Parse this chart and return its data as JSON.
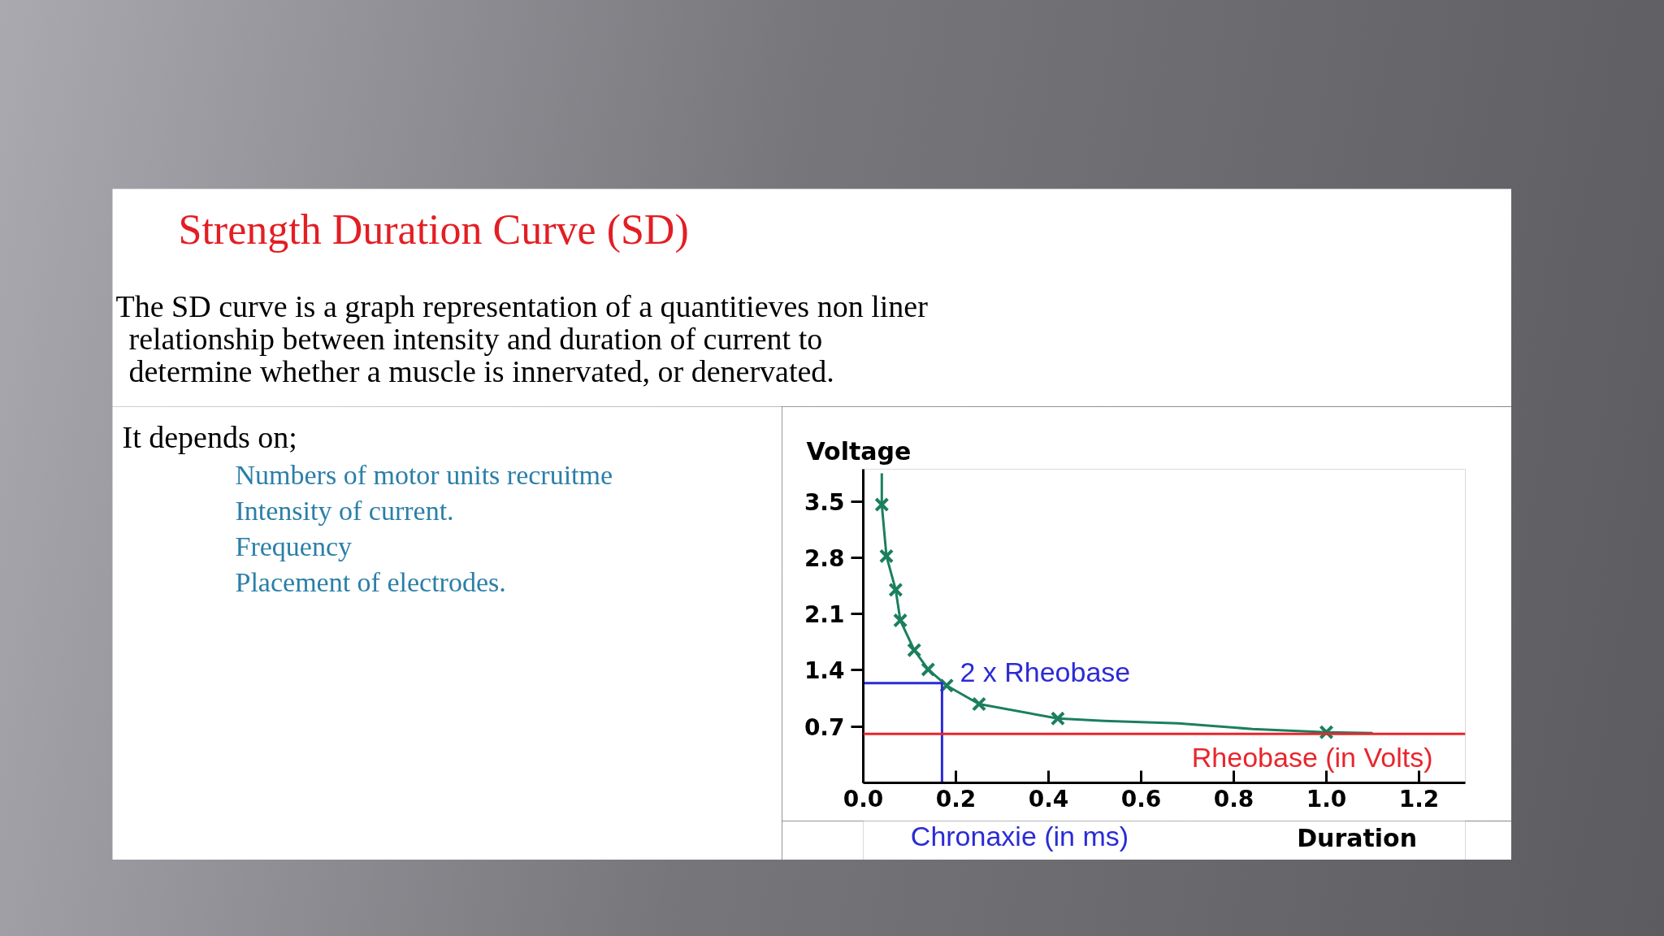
{
  "chart_data": {
    "type": "line",
    "title": "Strength Duration Curve (SD)",
    "subtitle": "The SD curve is a graph representation of a quantitieves non liner relationship between intensity and duration of current to determine whether a muscle is innervated, or denervated.",
    "xlabel": "Duration",
    "ylabel": "Voltage",
    "xlim": [
      0,
      1.3
    ],
    "ylim": [
      0,
      3.9
    ],
    "xticks": [
      {
        "value": 0,
        "label": "0.0"
      },
      0.2,
      0.4,
      0.6,
      0.8,
      {
        "value": 1,
        "label": "1.0"
      },
      1.2
    ],
    "yticks": [
      0.7,
      1.4,
      2.1,
      2.8,
      3.5
    ],
    "series": [
      {
        "color": "#1b7f5e",
        "x": [
          0.04,
          0.04,
          0.05,
          0.07,
          0.08,
          0.11,
          0.14,
          0.18,
          0.25,
          0.42,
          0.52,
          0.68,
          0.84,
          1.0,
          1.1
        ],
        "values": [
          3.85,
          3.46,
          2.82,
          2.4,
          2.02,
          1.65,
          1.41,
          1.21,
          0.98,
          0.8,
          0.77,
          0.74,
          0.67,
          0.63,
          0.62
        ]
      },
      {
        "type": "scatter",
        "marker": "cross",
        "color": "#1b7f5e",
        "x": [
          0.04,
          0.05,
          0.07,
          0.08,
          0.11,
          0.14,
          0.18,
          0.25,
          0.42,
          1.0
        ],
        "values": [
          3.46,
          2.82,
          2.4,
          2.02,
          1.65,
          1.41,
          1.21,
          0.98,
          0.8,
          0.63
        ]
      },
      {
        "color": "#2b2bd6",
        "x": [
          0,
          0.17,
          0.17
        ],
        "values": [
          1.24,
          1.24,
          0
        ]
      }
    ],
    "ref_lines": [
      {
        "axis": "y",
        "value": 0.61,
        "label": "Rheobase (in Volts)",
        "color": "#e8262d"
      }
    ],
    "annotations": [
      "It depends on;",
      "Numbers of motor units recruitme",
      "Intensity of current.",
      "Frequency",
      "Placement of electrodes.",
      {
        "text": "2 x Rheobase",
        "x": 0.17,
        "y": 1.24
      },
      {
        "text": "Chronaxie (in ms)",
        "x": 0.17,
        "y": 0
      }
    ]
  }
}
